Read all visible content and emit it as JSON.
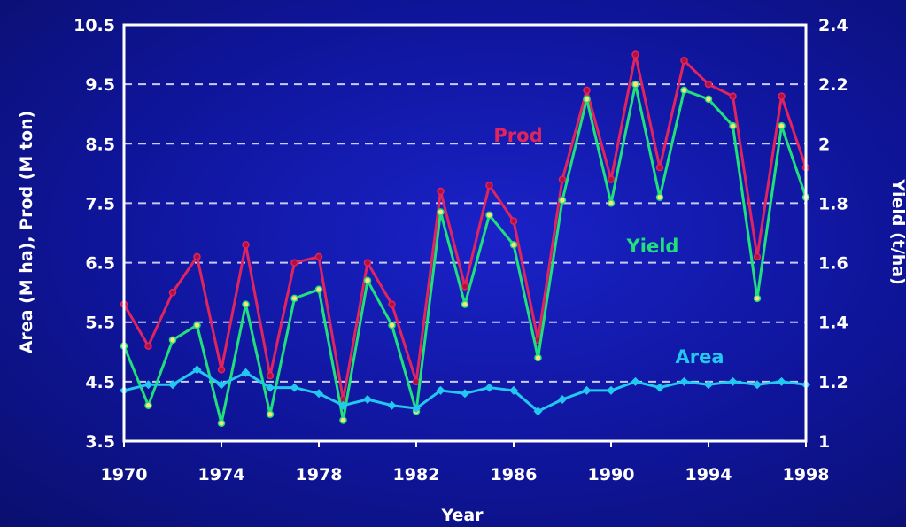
{
  "chart_data": {
    "type": "line",
    "xlabel": "Year",
    "ylabel_left": "Area (M ha), Prod (M ton)",
    "ylabel_right": "Yield (t/ha)",
    "x": [
      1970,
      1971,
      1972,
      1973,
      1974,
      1975,
      1976,
      1977,
      1978,
      1979,
      1980,
      1981,
      1982,
      1983,
      1984,
      1985,
      1986,
      1987,
      1988,
      1989,
      1990,
      1991,
      1992,
      1993,
      1994,
      1995,
      1996,
      1997,
      1998
    ],
    "xlim": [
      1970,
      1998
    ],
    "xticks": [
      "1970",
      "1974",
      "1978",
      "1982",
      "1986",
      "1990",
      "1994",
      "1998"
    ],
    "ylim_left": [
      3.5,
      10.5
    ],
    "yticks_left": [
      "3.5",
      "4.5",
      "5.5",
      "6.5",
      "7.5",
      "8.5",
      "9.5",
      "10.5"
    ],
    "ylim_right": [
      1,
      2.4
    ],
    "yticks_right": [
      "1",
      "1.2",
      "1.4",
      "1.6",
      "1.8",
      "2",
      "2.2",
      "2.4"
    ],
    "grid": "horizontal-dashed",
    "series": [
      {
        "name": "Prod",
        "axis": "left",
        "color": "#e0245e",
        "values": [
          5.8,
          5.1,
          6.0,
          6.6,
          4.7,
          6.8,
          4.6,
          6.5,
          6.6,
          4.2,
          6.5,
          5.8,
          4.5,
          7.7,
          6.1,
          7.8,
          7.2,
          5.2,
          7.9,
          9.4,
          7.9,
          10.0,
          8.1,
          9.9,
          9.5,
          9.3,
          6.6,
          9.3,
          8.1
        ]
      },
      {
        "name": "Yield",
        "axis": "right",
        "color": "#1fe07a",
        "values": [
          1.32,
          1.12,
          1.34,
          1.39,
          1.06,
          1.46,
          1.09,
          1.48,
          1.51,
          1.07,
          1.54,
          1.39,
          1.1,
          1.77,
          1.46,
          1.76,
          1.66,
          1.28,
          1.81,
          2.15,
          1.8,
          2.2,
          1.82,
          2.18,
          2.15,
          2.06,
          1.48,
          2.06,
          1.82
        ]
      },
      {
        "name": "Area",
        "axis": "left",
        "color": "#22c8f0",
        "values": [
          4.35,
          4.45,
          4.45,
          4.7,
          4.45,
          4.65,
          4.4,
          4.4,
          4.3,
          4.1,
          4.2,
          4.1,
          4.05,
          4.35,
          4.3,
          4.4,
          4.35,
          4.0,
          4.2,
          4.35,
          4.35,
          4.5,
          4.4,
          4.5,
          4.45,
          4.5,
          4.45,
          4.5,
          4.45
        ]
      }
    ]
  },
  "colors": {
    "background": "#1218b0",
    "frame": "#ffffff",
    "grid": "#c8ccf5",
    "prod_marker": "#b01040",
    "yield_marker": "#ffe07a"
  }
}
